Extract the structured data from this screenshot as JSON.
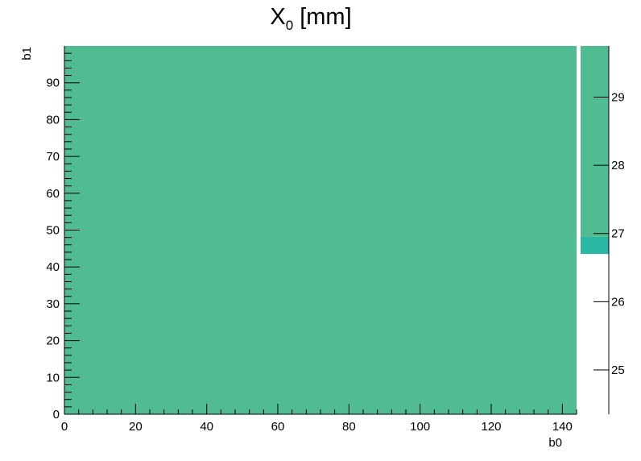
{
  "chart_data": {
    "type": "heatmap",
    "title": {
      "base": "X",
      "subscript": "0",
      "rest": " [mm]"
    },
    "xlabel": "b0",
    "ylabel": "b1",
    "xlim": [
      0,
      144
    ],
    "ylim": [
      0,
      100
    ],
    "x_ticks": [
      0,
      20,
      40,
      60,
      80,
      100,
      120,
      140
    ],
    "y_ticks": [
      0,
      10,
      20,
      30,
      40,
      50,
      60,
      70,
      80,
      90
    ],
    "cells": [
      {
        "x_range": [
          0,
          144
        ],
        "y_range": [
          0,
          100
        ],
        "value": 28.1,
        "color": "#51bb91"
      }
    ],
    "colorbar": {
      "range": [
        24.35,
        29.75
      ],
      "ticks": [
        25,
        26,
        27,
        28,
        29
      ],
      "bands": [
        {
          "from": 26.7,
          "to": 26.95,
          "color": "#2bb7a3"
        },
        {
          "from": 26.95,
          "to": 29.75,
          "color": "#51bb91"
        }
      ]
    },
    "grid": false
  }
}
